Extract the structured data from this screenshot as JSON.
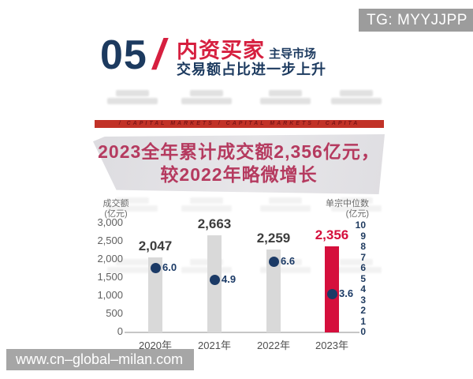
{
  "badge": {
    "label": "TG: MYYJJPP"
  },
  "header": {
    "number": "05",
    "slash": "/",
    "title_red": "内资买家",
    "title_suffix": "主导市场",
    "subtitle": "交易额占比进一步上升"
  },
  "ribbon": {
    "text": "/      CAPITAL MARKETS      /      CAPITAL MARKETS      /      CAPITA"
  },
  "banner": {
    "line1": "2023全年累计成交额2,356亿元，",
    "line2": "较2022年略微增长"
  },
  "chart_data": {
    "type": "bar",
    "title": "2023全年累计成交额2,356亿元，较2022年略微增长",
    "categories": [
      "2020年",
      "2021年",
      "2022年",
      "2023年"
    ],
    "series": [
      {
        "name": "成交额(亿元)",
        "type": "bar",
        "values": [
          2047,
          2663,
          2259,
          2356
        ],
        "labels": [
          "2,047",
          "2,663",
          "2,259",
          "2,356"
        ]
      },
      {
        "name": "单宗中位数(亿元)",
        "type": "scatter",
        "values": [
          6.0,
          4.9,
          6.6,
          3.6
        ],
        "labels": [
          "6.0",
          "4.9",
          "6.6",
          "3.6"
        ]
      }
    ],
    "highlight_index": 3,
    "left_axis": {
      "title_line1": "成交额",
      "title_line2": "(亿元)",
      "ticks": [
        "3,000",
        "2,500",
        "2,000",
        "1,500",
        "1,000",
        "500",
        "0"
      ],
      "range": [
        0,
        3000
      ]
    },
    "right_axis": {
      "title_line1": "单宗中位数",
      "title_line2": "(亿元)",
      "ticks": [
        "10",
        "9",
        "8",
        "7",
        "6",
        "5",
        "4",
        "3",
        "2",
        "1",
        "0"
      ],
      "range": [
        0,
        10
      ]
    },
    "grid": false,
    "legend": "none",
    "colors": {
      "bar": "#d9d9d9",
      "bar_highlight": "#d50f3c",
      "dot": "#1b3a66",
      "bar_label": "#3d3d3d",
      "bar_label_highlight": "#d50f3c"
    }
  },
  "footer": {
    "watermark": "www.cn–global–milan.com"
  }
}
